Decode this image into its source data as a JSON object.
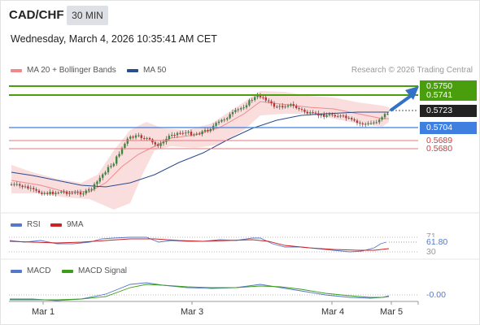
{
  "header": {
    "symbol": "CAD/CHF",
    "timeframe": "30 MIN",
    "datetime": "Wednesday, March 4, 2026 10:35:41 AM CET"
  },
  "main_legend": {
    "ma20": "MA 20 + Bollinger Bands",
    "ma50": "MA 50",
    "copyright": "Research © 2026 Trading Central"
  },
  "levels": {
    "r1": "0.5750",
    "r2": "0.5741",
    "current": "0.5723",
    "s1": "0.5704",
    "s2": "0.5689",
    "s3": "0.5680"
  },
  "rsi": {
    "label": "RSI",
    "ma_label": "9MA",
    "value": "61.80",
    "lower_level": "30",
    "upper_level_partial": "71"
  },
  "macd": {
    "label": "MACD",
    "signal_label": "MACD Signal",
    "value": "-0.00"
  },
  "xaxis": {
    "labels": [
      "Mar 1",
      "Mar 3",
      "Mar 4",
      "Mar 5"
    ]
  },
  "colors": {
    "green": "#4a9e0e",
    "blue": "#3f7fe0",
    "red": "#d43a3a",
    "dark": "#222222",
    "bb_fill": "#f8d3d3",
    "ma50": "#2a4d8f",
    "rsi": "#5577cc",
    "ma9": "#cc2222",
    "macd_signal": "#3a9e1a"
  }
}
